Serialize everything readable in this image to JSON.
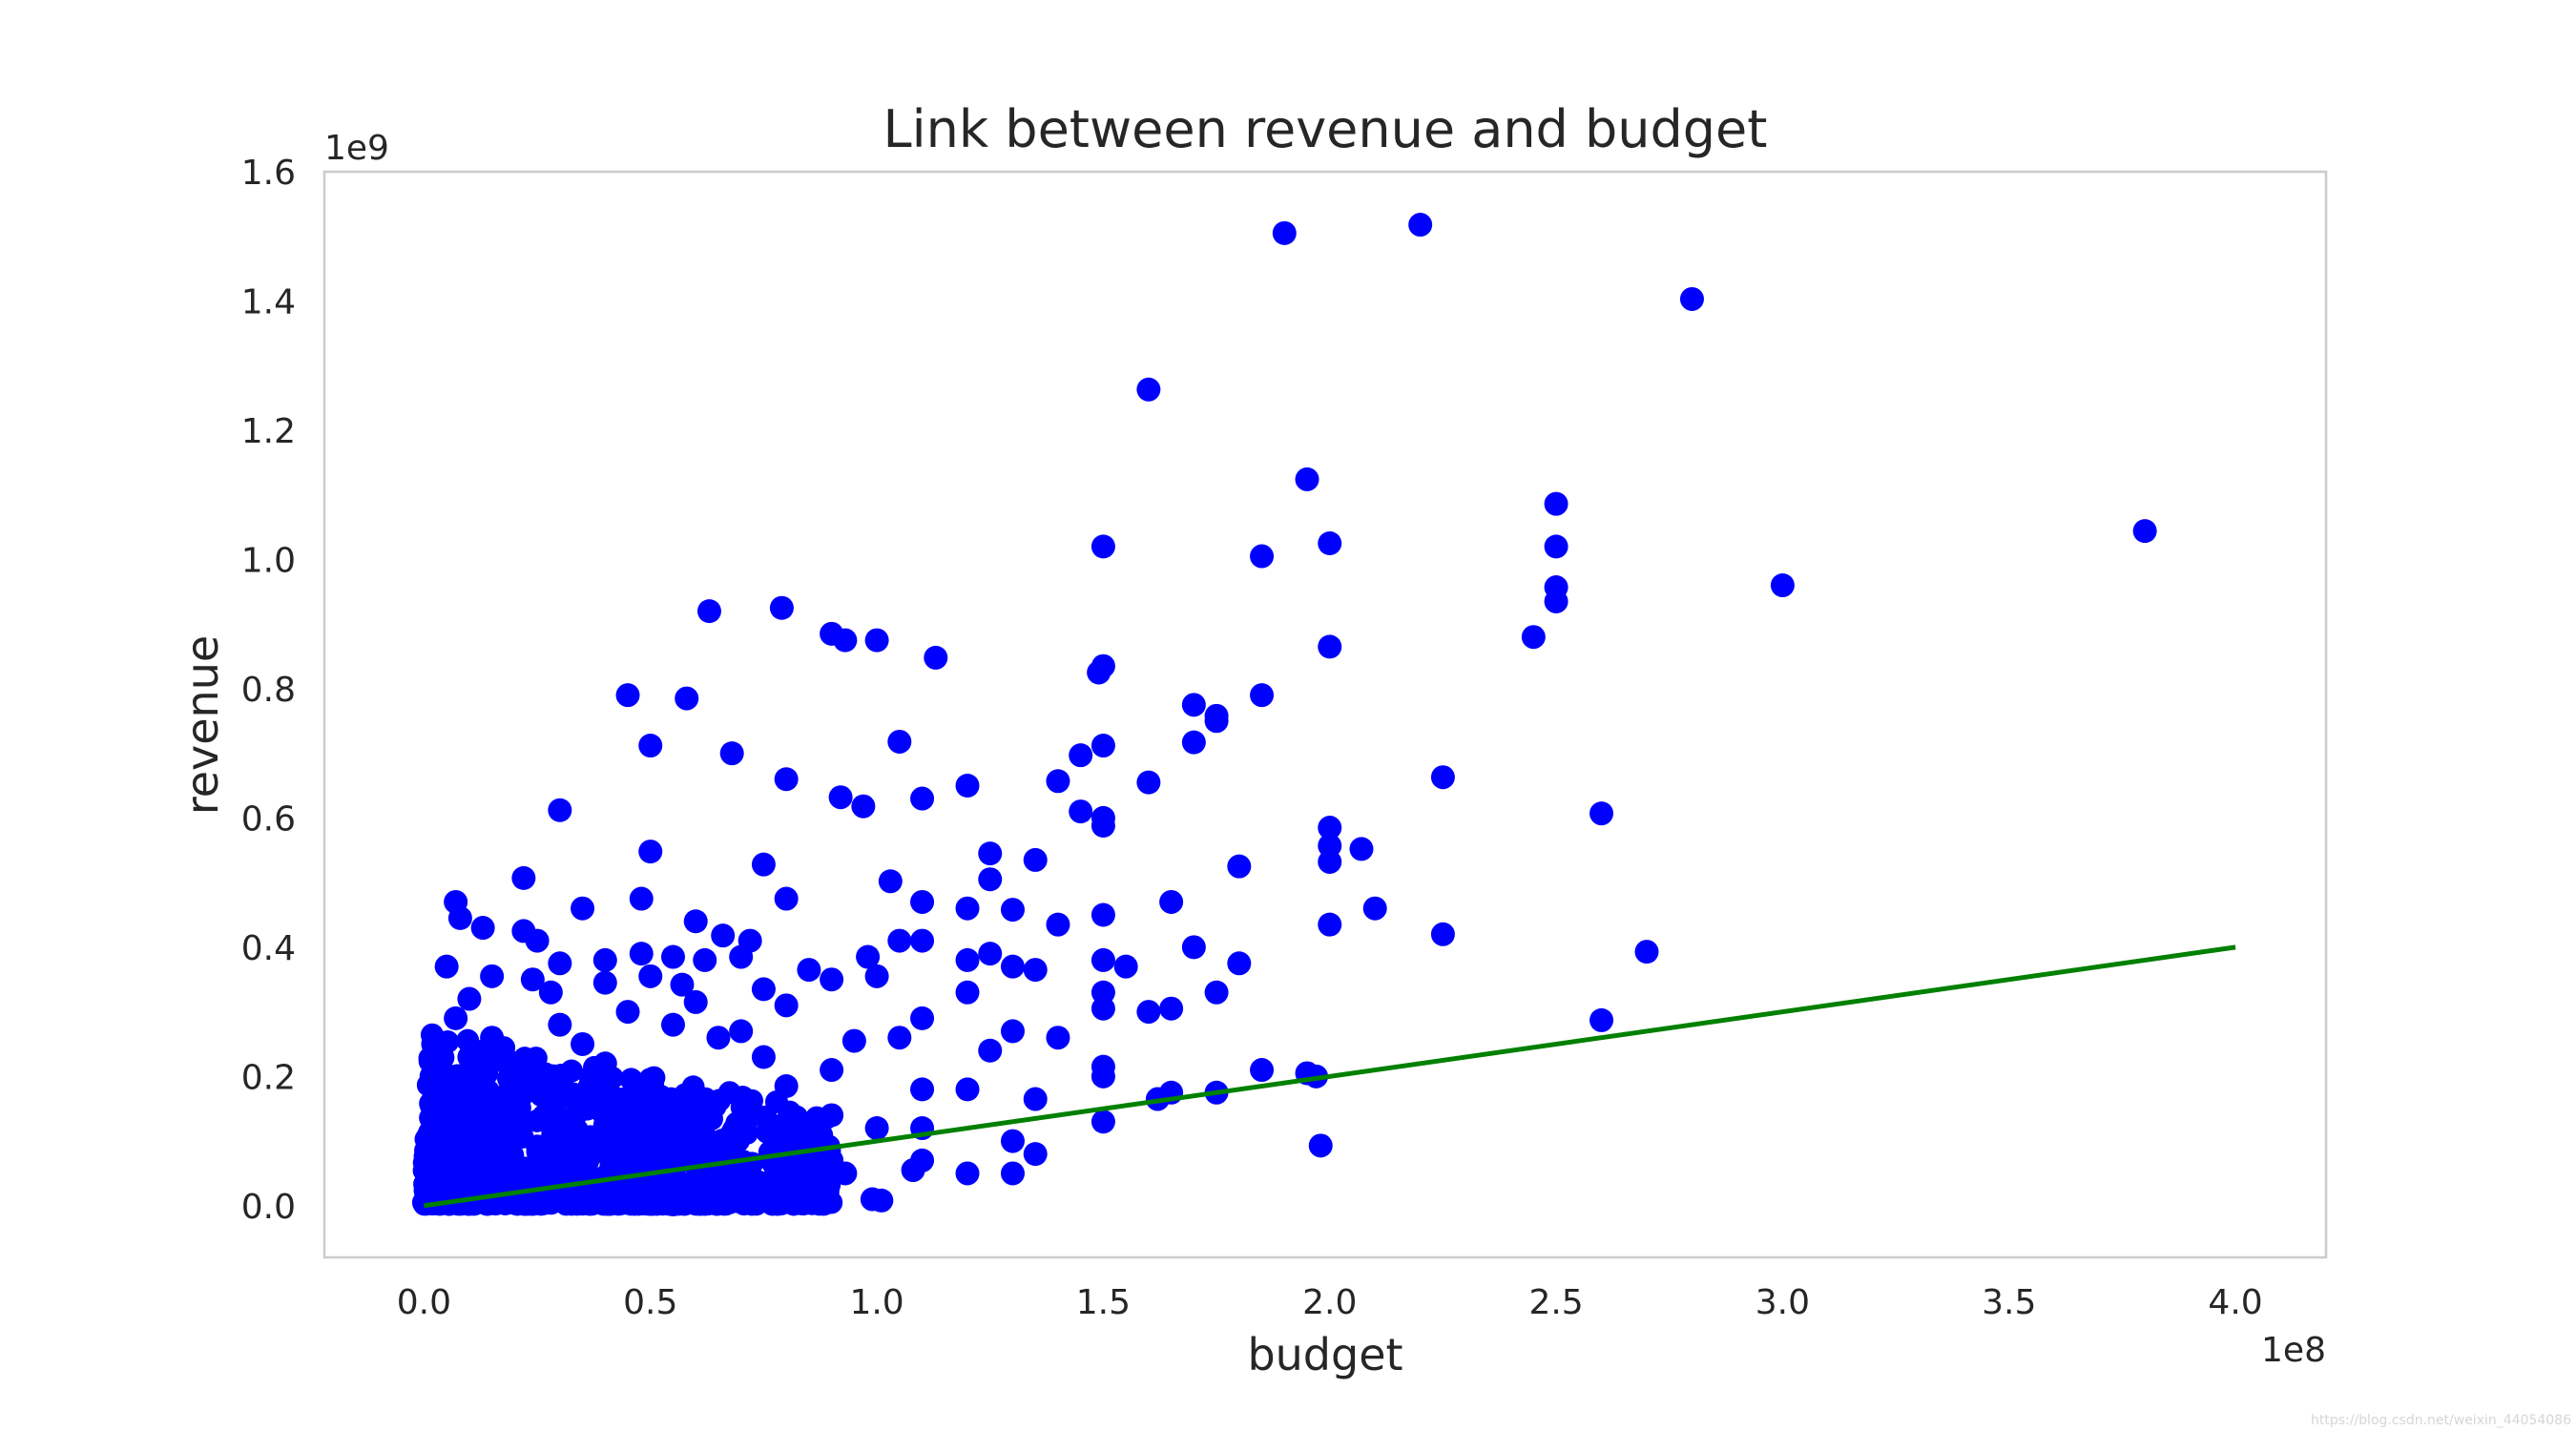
{
  "chart_data": {
    "type": "scatter",
    "title": "Link between revenue and budget",
    "xlabel": "budget",
    "ylabel": "revenue",
    "x_offset_label": "1e8",
    "y_offset_label": "1e9",
    "xlim": [
      -0.22,
      4.2
    ],
    "ylim": [
      -0.08,
      1.6
    ],
    "x_ticks": [
      "0.0",
      "0.5",
      "1.0",
      "1.5",
      "2.0",
      "2.5",
      "3.0",
      "3.5",
      "4.0"
    ],
    "y_ticks": [
      "0.0",
      "0.2",
      "0.4",
      "0.6",
      "0.8",
      "1.0",
      "1.2",
      "1.4",
      "1.6"
    ],
    "grid": false,
    "marker_color": "#0000ff",
    "line_color": "#008000",
    "series": [
      {
        "type": "scatter",
        "points": [
          [
            1.9,
            1.505
          ],
          [
            2.2,
            1.518
          ],
          [
            2.8,
            1.403
          ],
          [
            1.6,
            1.263
          ],
          [
            1.95,
            1.124
          ],
          [
            2.5,
            1.086
          ],
          [
            3.8,
            1.044
          ],
          [
            1.5,
            1.02
          ],
          [
            2.0,
            1.025
          ],
          [
            2.5,
            1.02
          ],
          [
            1.85,
            1.005
          ],
          [
            3.0,
            0.96
          ],
          [
            2.5,
            0.957
          ],
          [
            2.5,
            0.935
          ],
          [
            0.63,
            0.92
          ],
          [
            0.79,
            0.925
          ],
          [
            0.9,
            0.885
          ],
          [
            0.93,
            0.875
          ],
          [
            1.0,
            0.875
          ],
          [
            2.45,
            0.88
          ],
          [
            2.0,
            0.865
          ],
          [
            1.13,
            0.848
          ],
          [
            1.5,
            0.835
          ],
          [
            1.49,
            0.825
          ],
          [
            0.45,
            0.79
          ],
          [
            0.58,
            0.785
          ],
          [
            1.85,
            0.79
          ],
          [
            1.7,
            0.775
          ],
          [
            1.75,
            0.758
          ],
          [
            1.75,
            0.75
          ],
          [
            0.5,
            0.712
          ],
          [
            0.68,
            0.7
          ],
          [
            1.05,
            0.718
          ],
          [
            1.7,
            0.717
          ],
          [
            1.5,
            0.712
          ],
          [
            1.45,
            0.697
          ],
          [
            0.8,
            0.66
          ],
          [
            1.2,
            0.65
          ],
          [
            1.4,
            0.657
          ],
          [
            1.6,
            0.655
          ],
          [
            2.25,
            0.663
          ],
          [
            0.3,
            0.612
          ],
          [
            0.92,
            0.632
          ],
          [
            0.97,
            0.618
          ],
          [
            1.1,
            0.63
          ],
          [
            1.45,
            0.61
          ],
          [
            1.5,
            0.6
          ],
          [
            1.5,
            0.588
          ],
          [
            2.0,
            0.585
          ],
          [
            2.6,
            0.607
          ],
          [
            2.0,
            0.557
          ],
          [
            2.07,
            0.552
          ],
          [
            2.0,
            0.532
          ],
          [
            0.5,
            0.548
          ],
          [
            1.25,
            0.545
          ],
          [
            1.35,
            0.535
          ],
          [
            0.75,
            0.528
          ],
          [
            1.8,
            0.525
          ],
          [
            0.22,
            0.507
          ],
          [
            1.03,
            0.502
          ],
          [
            1.25,
            0.505
          ],
          [
            0.07,
            0.47
          ],
          [
            0.35,
            0.46
          ],
          [
            0.48,
            0.475
          ],
          [
            0.8,
            0.475
          ],
          [
            1.1,
            0.47
          ],
          [
            1.2,
            0.46
          ],
          [
            1.3,
            0.458
          ],
          [
            1.5,
            0.45
          ],
          [
            1.65,
            0.47
          ],
          [
            2.1,
            0.46
          ],
          [
            0.08,
            0.445
          ],
          [
            0.13,
            0.43
          ],
          [
            0.6,
            0.44
          ],
          [
            0.66,
            0.418
          ],
          [
            0.72,
            0.41
          ],
          [
            1.4,
            0.435
          ],
          [
            2.0,
            0.435
          ],
          [
            2.25,
            0.42
          ],
          [
            0.22,
            0.425
          ],
          [
            0.25,
            0.41
          ],
          [
            0.05,
            0.37
          ],
          [
            0.3,
            0.375
          ],
          [
            0.4,
            0.38
          ],
          [
            0.48,
            0.39
          ],
          [
            0.55,
            0.385
          ],
          [
            0.62,
            0.38
          ],
          [
            0.7,
            0.385
          ],
          [
            0.85,
            0.365
          ],
          [
            0.98,
            0.385
          ],
          [
            1.05,
            0.41
          ],
          [
            1.1,
            0.41
          ],
          [
            1.2,
            0.38
          ],
          [
            1.25,
            0.39
          ],
          [
            1.3,
            0.37
          ],
          [
            1.5,
            0.38
          ],
          [
            1.55,
            0.37
          ],
          [
            1.7,
            0.4
          ],
          [
            1.8,
            0.375
          ],
          [
            2.7,
            0.393
          ],
          [
            0.15,
            0.355
          ],
          [
            0.24,
            0.35
          ],
          [
            0.4,
            0.345
          ],
          [
            0.5,
            0.355
          ],
          [
            0.57,
            0.342
          ],
          [
            0.75,
            0.335
          ],
          [
            0.9,
            0.35
          ],
          [
            1.0,
            0.355
          ],
          [
            1.2,
            0.33
          ],
          [
            1.35,
            0.365
          ],
          [
            1.5,
            0.33
          ],
          [
            1.75,
            0.33
          ],
          [
            0.1,
            0.32
          ],
          [
            0.28,
            0.33
          ],
          [
            0.45,
            0.3
          ],
          [
            0.6,
            0.315
          ],
          [
            0.8,
            0.31
          ],
          [
            1.5,
            0.305
          ],
          [
            1.6,
            0.3
          ],
          [
            1.65,
            0.305
          ],
          [
            0.07,
            0.29
          ],
          [
            0.3,
            0.28
          ],
          [
            0.55,
            0.28
          ],
          [
            0.7,
            0.27
          ],
          [
            1.1,
            0.29
          ],
          [
            1.3,
            0.27
          ],
          [
            2.6,
            0.287
          ],
          [
            0.02,
            0.25
          ],
          [
            0.15,
            0.26
          ],
          [
            0.35,
            0.25
          ],
          [
            0.65,
            0.26
          ],
          [
            0.95,
            0.255
          ],
          [
            1.05,
            0.26
          ],
          [
            1.25,
            0.24
          ],
          [
            1.4,
            0.26
          ],
          [
            0.1,
            0.23
          ],
          [
            0.4,
            0.22
          ],
          [
            0.75,
            0.23
          ],
          [
            0.9,
            0.21
          ],
          [
            1.5,
            0.215
          ],
          [
            1.95,
            0.205
          ],
          [
            0.03,
            0.19
          ],
          [
            0.25,
            0.2
          ],
          [
            0.5,
            0.195
          ],
          [
            0.8,
            0.185
          ],
          [
            1.1,
            0.18
          ],
          [
            1.2,
            0.18
          ],
          [
            1.5,
            0.2
          ],
          [
            1.85,
            0.21
          ],
          [
            1.97,
            0.2
          ],
          [
            1.35,
            0.165
          ],
          [
            1.62,
            0.165
          ],
          [
            1.65,
            0.175
          ],
          [
            1.75,
            0.175
          ],
          [
            0.12,
            0.16
          ],
          [
            0.35,
            0.15
          ],
          [
            0.6,
            0.155
          ],
          [
            0.9,
            0.14
          ],
          [
            0.05,
            0.13
          ],
          [
            0.2,
            0.12
          ],
          [
            0.4,
            0.125
          ],
          [
            0.7,
            0.11
          ],
          [
            1.0,
            0.12
          ],
          [
            1.1,
            0.12
          ],
          [
            1.5,
            0.13
          ],
          [
            0.02,
            0.1
          ],
          [
            0.15,
            0.09
          ],
          [
            0.3,
            0.1
          ],
          [
            0.55,
            0.095
          ],
          [
            0.8,
            0.09
          ],
          [
            1.3,
            0.1
          ],
          [
            1.98,
            0.093
          ],
          [
            0.04,
            0.07
          ],
          [
            0.25,
            0.06
          ],
          [
            0.45,
            0.07
          ],
          [
            0.65,
            0.06
          ],
          [
            0.9,
            0.07
          ],
          [
            1.1,
            0.07
          ],
          [
            1.35,
            0.08
          ],
          [
            0.01,
            0.04
          ],
          [
            0.1,
            0.03
          ],
          [
            0.2,
            0.04
          ],
          [
            0.35,
            0.03
          ],
          [
            0.6,
            0.035
          ],
          [
            0.85,
            0.02
          ],
          [
            0.93,
            0.05
          ],
          [
            1.08,
            0.055
          ],
          [
            1.2,
            0.05
          ],
          [
            1.3,
            0.05
          ],
          [
            0.0,
            0.005
          ],
          [
            0.05,
            0.01
          ],
          [
            0.15,
            0.005
          ],
          [
            0.25,
            0.008
          ],
          [
            0.4,
            0.005
          ],
          [
            0.55,
            0.002
          ],
          [
            0.7,
            0.008
          ],
          [
            0.88,
            0.01
          ],
          [
            0.99,
            0.01
          ],
          [
            1.01,
            0.008
          ]
        ],
        "cluster_fill": "dense overlapping markers for budget 0.0–0.9, revenue 0.0–0.25"
      },
      {
        "type": "line",
        "points": [
          [
            0.0,
            0.0
          ],
          [
            4.0,
            0.4
          ]
        ]
      }
    ]
  },
  "watermark": "https://blog.csdn.net/weixin_44054086"
}
